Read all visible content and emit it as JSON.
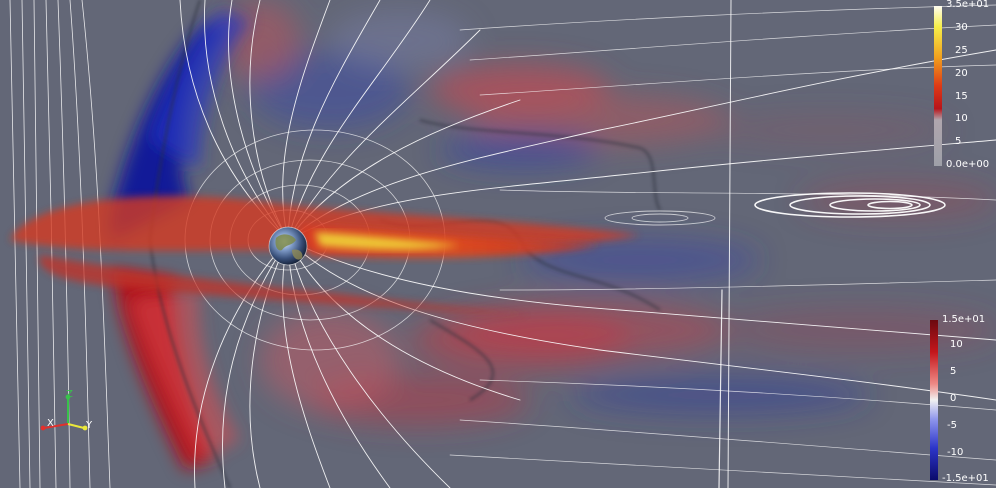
{
  "colorbars": {
    "top": {
      "max_label": "3.5e+01",
      "ticks": [
        "30",
        "25",
        "20",
        "15",
        "10",
        "5"
      ],
      "min_label": "0.0e+00",
      "colors": [
        "#fffdf2",
        "#f6ef4a",
        "#f1a01e",
        "#de3a16",
        "#b8141a",
        "#b0a6ae",
        "#a3a2a7"
      ]
    },
    "bottom": {
      "max_label": "1.5e+01",
      "ticks": [
        "10",
        "5",
        "0",
        "-5",
        "-10"
      ],
      "min_label": "-1.5e+01",
      "colors": [
        "#6b0a10",
        "#c4161b",
        "#ee8a86",
        "#f1f1f1",
        "#8f96ec",
        "#2c35c9",
        "#0b0c6b"
      ]
    }
  },
  "orientation_axes": {
    "x_label": "X",
    "y_label": "Y",
    "z_label": "Z",
    "colors": {
      "x": "#e0302c",
      "y": "#ebe83a",
      "z": "#38c24b"
    }
  },
  "field_colors": {
    "background": "#5d6272",
    "positive": "#c7202a",
    "negative": "#1b2a9e",
    "current_sheet": "#e8401c",
    "current_core": "#f2e23a",
    "field_lines": "#ffffff"
  }
}
